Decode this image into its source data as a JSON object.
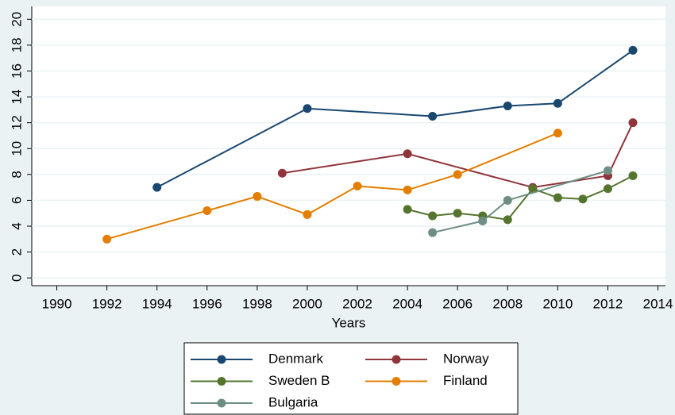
{
  "chart_data": {
    "type": "line",
    "x_label": "Years",
    "xlim": [
      1989,
      2014.3
    ],
    "xticks": [
      1990,
      1992,
      1994,
      1996,
      1998,
      2000,
      2002,
      2004,
      2006,
      2008,
      2010,
      2012,
      2014
    ],
    "ylim": [
      -0.6,
      21
    ],
    "yticks": [
      0,
      2,
      4,
      6,
      8,
      10,
      12,
      14,
      16,
      18,
      20
    ],
    "grid": true,
    "legend": "bottom",
    "series": [
      {
        "name": "Denmark",
        "color": "#1a476f",
        "x": [
          1994,
          2000,
          2005,
          2008,
          2010,
          2013
        ],
        "values": [
          7.0,
          13.1,
          12.5,
          13.3,
          13.5,
          17.6
        ]
      },
      {
        "name": "Norway",
        "color": "#90353b",
        "x": [
          1999,
          2004,
          2009,
          2012,
          2013
        ],
        "values": [
          8.1,
          9.6,
          7.0,
          7.9,
          12.0
        ]
      },
      {
        "name": "Sweden B",
        "color": "#55752f",
        "x": [
          2004,
          2005,
          2006,
          2007,
          2008,
          2009,
          2010,
          2011,
          2012,
          2013
        ],
        "values": [
          5.3,
          4.8,
          5.0,
          4.8,
          4.5,
          6.9,
          6.2,
          6.1,
          6.9,
          7.9
        ]
      },
      {
        "name": "Finland",
        "color": "#e37e00",
        "x": [
          1992,
          1996,
          1998,
          2000,
          2002,
          2004,
          2006,
          2010
        ],
        "values": [
          3.0,
          5.2,
          6.3,
          4.9,
          7.1,
          6.8,
          8.0,
          11.2
        ]
      },
      {
        "name": "Bulgaria",
        "color": "#6e8e84",
        "x": [
          2005,
          2007,
          2008,
          2012
        ],
        "values": [
          3.5,
          4.4,
          6.0,
          8.3
        ]
      }
    ]
  }
}
